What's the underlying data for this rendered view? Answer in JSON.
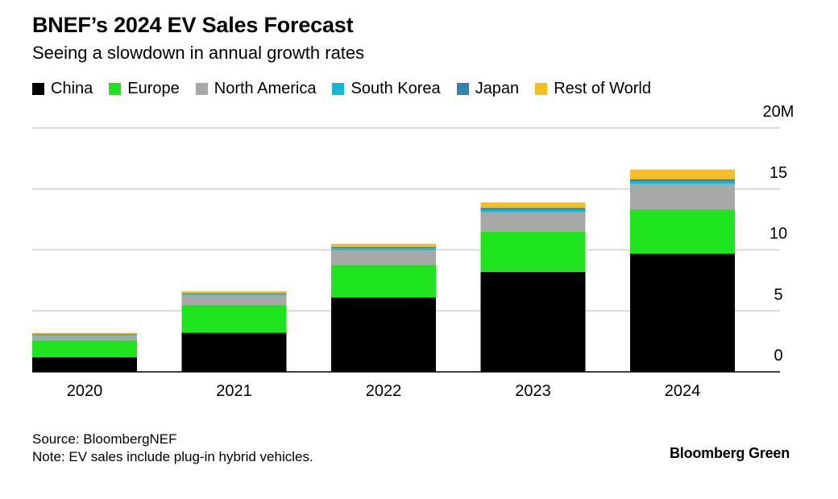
{
  "title": "BNEF’s 2024 EV Sales Forecast",
  "subtitle": "Seeing a slowdown in annual growth rates",
  "chart_data": {
    "type": "bar",
    "stacked": true,
    "categories": [
      "2020",
      "2021",
      "2022",
      "2023",
      "2024"
    ],
    "series": [
      {
        "name": "China",
        "color": "#000000",
        "values": [
          1.2,
          3.2,
          6.1,
          8.2,
          9.7
        ]
      },
      {
        "name": "Europe",
        "color": "#1fe51f",
        "values": [
          1.4,
          2.3,
          2.7,
          3.3,
          3.6
        ]
      },
      {
        "name": "North America",
        "color": "#a8a8a8",
        "values": [
          0.4,
          0.8,
          1.2,
          1.6,
          2.1
        ]
      },
      {
        "name": "South Korea",
        "color": "#12b8d6",
        "values": [
          0.05,
          0.1,
          0.15,
          0.2,
          0.2
        ]
      },
      {
        "name": "Japan",
        "color": "#2f85b0",
        "values": [
          0.05,
          0.05,
          0.1,
          0.15,
          0.2
        ]
      },
      {
        "name": "Rest of World",
        "color": "#f7be22",
        "values": [
          0.1,
          0.15,
          0.25,
          0.45,
          0.8
        ]
      }
    ],
    "y_tick_labels": [
      "0",
      "5",
      "10",
      "15",
      "20M"
    ],
    "ylim": [
      0,
      20
    ],
    "y_ticks": [
      0,
      5,
      10,
      15,
      20
    ],
    "grid": true,
    "legend_position": "top-left"
  },
  "footer": {
    "source": "Source: BloombergNEF",
    "note": "Note: EV sales include plug-in hybrid vehicles."
  },
  "brand": "Bloomberg Green"
}
